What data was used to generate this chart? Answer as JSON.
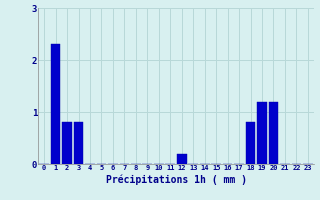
{
  "hours": [
    0,
    1,
    2,
    3,
    4,
    5,
    6,
    7,
    8,
    9,
    10,
    11,
    12,
    13,
    14,
    15,
    16,
    17,
    18,
    19,
    20,
    21,
    22,
    23
  ],
  "values": [
    0,
    2.3,
    0.8,
    0.8,
    0,
    0,
    0,
    0,
    0,
    0,
    0,
    0,
    0.2,
    0,
    0,
    0,
    0,
    0,
    0.8,
    1.2,
    1.2,
    0,
    0,
    0
  ],
  "bar_color": "#0000cc",
  "bar_edge_color": "#0000aa",
  "bg_color": "#d8f0f0",
  "grid_color": "#b8d8d8",
  "xlabel": "Précipitations 1h ( mm )",
  "xlabel_color": "#00008b",
  "tick_color": "#00008b",
  "ylim": [
    0,
    3
  ],
  "yticks": [
    0,
    1,
    2,
    3
  ]
}
